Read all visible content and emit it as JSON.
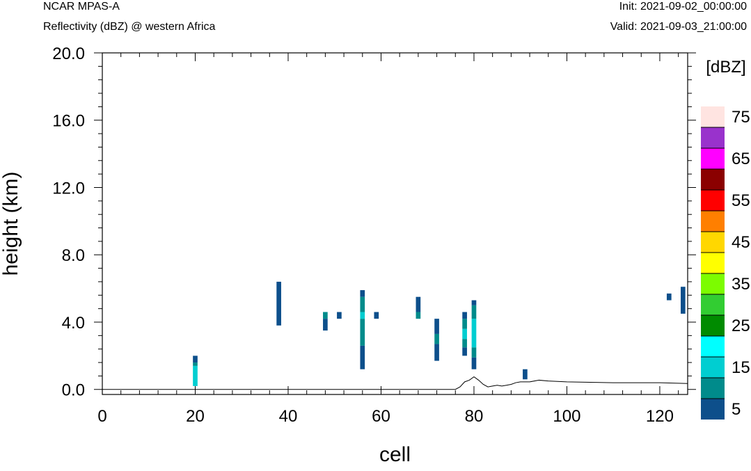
{
  "header": {
    "model": "NCAR MPAS-A",
    "field": "Reflectivity (dBZ) @ western Africa",
    "init": "Init: 2021-09-02_00:00:00",
    "valid": "Valid: 2021-09-03_21:00:00"
  },
  "chart_data": {
    "type": "heatmap",
    "xlabel": "cell",
    "ylabel": "height (km)",
    "xlim": [
      0,
      126
    ],
    "ylim": [
      -0.3,
      20.0
    ],
    "x_ticks": [
      0,
      20,
      40,
      60,
      80,
      100,
      120
    ],
    "y_ticks": [
      "0.0",
      "4.0",
      "8.0",
      "12.0",
      "16.0",
      "20.0"
    ],
    "y_tick_values": [
      0,
      4,
      8,
      12,
      16,
      20
    ],
    "colorbar": {
      "unit": "[dBZ]",
      "labels": [
        "5",
        "15",
        "25",
        "35",
        "45",
        "55",
        "65",
        "75"
      ],
      "label_values": [
        5,
        15,
        25,
        35,
        45,
        55,
        65,
        75
      ],
      "levels": [
        5,
        10,
        15,
        20,
        25,
        30,
        35,
        40,
        45,
        50,
        55,
        60,
        65,
        70,
        75
      ],
      "colors": [
        "#0d4f8b",
        "#008b8b",
        "#00ced1",
        "#00ffff",
        "#008b00",
        "#32cd32",
        "#7cfc00",
        "#ffff00",
        "#ffd700",
        "#ff7f00",
        "#ff0000",
        "#8b0000",
        "#ff00ff",
        "#9932cc",
        "#ffe4e1"
      ]
    },
    "cells": [
      {
        "x": 20,
        "segments": [
          [
            0.2,
            1.4,
            15
          ],
          [
            1.4,
            1.6,
            10
          ],
          [
            1.6,
            2.0,
            5
          ]
        ]
      },
      {
        "x": 38,
        "segments": [
          [
            3.8,
            6.4,
            5
          ]
        ]
      },
      {
        "x": 48,
        "segments": [
          [
            3.5,
            4.2,
            5
          ],
          [
            4.2,
            4.6,
            10
          ]
        ]
      },
      {
        "x": 51,
        "segments": [
          [
            4.2,
            4.6,
            5
          ]
        ]
      },
      {
        "x": 56,
        "segments": [
          [
            1.2,
            2.6,
            5
          ],
          [
            2.6,
            4.2,
            10
          ],
          [
            4.2,
            4.6,
            15
          ],
          [
            4.6,
            5.5,
            10
          ],
          [
            5.5,
            5.9,
            5
          ]
        ]
      },
      {
        "x": 59,
        "segments": [
          [
            4.2,
            4.6,
            5
          ]
        ]
      },
      {
        "x": 68,
        "segments": [
          [
            4.2,
            4.6,
            10
          ],
          [
            4.6,
            5.5,
            5
          ]
        ]
      },
      {
        "x": 72,
        "segments": [
          [
            1.7,
            2.7,
            5
          ],
          [
            2.7,
            3.3,
            10
          ],
          [
            3.3,
            4.2,
            5
          ]
        ]
      },
      {
        "x": 78,
        "segments": [
          [
            2.0,
            2.5,
            5
          ],
          [
            2.5,
            3.0,
            10
          ],
          [
            3.0,
            3.6,
            15
          ],
          [
            3.6,
            4.2,
            10
          ],
          [
            4.2,
            4.6,
            5
          ]
        ]
      },
      {
        "x": 80,
        "segments": [
          [
            1.2,
            1.9,
            5
          ],
          [
            1.9,
            2.5,
            10
          ],
          [
            2.5,
            4.2,
            15
          ],
          [
            4.2,
            5.0,
            10
          ],
          [
            5.0,
            5.3,
            5
          ]
        ]
      },
      {
        "x": 91,
        "segments": [
          [
            0.6,
            1.2,
            5
          ]
        ]
      },
      {
        "x": 122,
        "segments": [
          [
            5.3,
            5.7,
            5
          ]
        ]
      },
      {
        "x": 125,
        "segments": [
          [
            4.5,
            6.1,
            5
          ]
        ]
      }
    ],
    "terrain": {
      "x": [
        0,
        70,
        76,
        77,
        78,
        79,
        80,
        81,
        82,
        83,
        84,
        85,
        86,
        87,
        88,
        89,
        90,
        92,
        94,
        96,
        100,
        110,
        120,
        126
      ],
      "y": [
        0.0,
        0.0,
        0.0,
        0.15,
        0.45,
        0.55,
        0.75,
        0.55,
        0.3,
        0.15,
        0.2,
        0.25,
        0.2,
        0.25,
        0.3,
        0.4,
        0.45,
        0.45,
        0.55,
        0.5,
        0.45,
        0.4,
        0.4,
        0.35
      ]
    }
  }
}
